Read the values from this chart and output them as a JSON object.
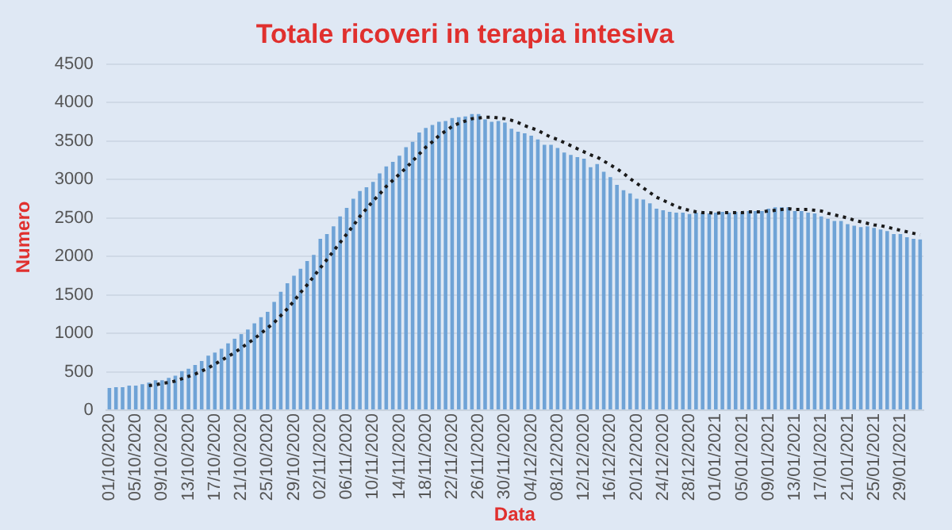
{
  "chart_data": {
    "type": "bar",
    "title": "Totale ricoveri in terapia intesiva",
    "xlabel": "Data",
    "ylabel": "Numero",
    "categories": [
      "01/10/2020",
      null,
      null,
      null,
      "05/10/2020",
      null,
      null,
      null,
      "09/10/2020",
      null,
      null,
      null,
      "13/10/2020",
      null,
      null,
      null,
      "17/10/2020",
      null,
      null,
      null,
      "21/10/2020",
      null,
      null,
      null,
      "25/10/2020",
      null,
      null,
      null,
      "29/10/2020",
      null,
      null,
      null,
      "02/11/2020",
      null,
      null,
      null,
      "06/11/2020",
      null,
      null,
      null,
      "10/11/2020",
      null,
      null,
      null,
      "14/11/2020",
      null,
      null,
      null,
      "18/11/2020",
      null,
      null,
      null,
      "22/11/2020",
      null,
      null,
      null,
      "26/11/2020",
      null,
      null,
      null,
      "30/11/2020",
      null,
      null,
      null,
      "04/12/2020",
      null,
      null,
      null,
      "08/12/2020",
      null,
      null,
      null,
      "12/12/2020",
      null,
      null,
      null,
      "16/12/2020",
      null,
      null,
      null,
      "20/12/2020",
      null,
      null,
      null,
      "24/12/2020",
      null,
      null,
      null,
      "28/12/2020",
      null,
      null,
      null,
      "01/01/2021",
      null,
      null,
      null,
      "05/01/2021",
      null,
      null,
      null,
      "09/01/2021",
      null,
      null,
      null,
      "13/01/2021",
      null,
      null,
      null,
      "17/01/2021",
      null,
      null,
      null,
      "21/01/2021",
      null,
      null,
      null,
      "25/01/2021",
      null,
      null,
      null,
      "29/01/2021",
      null,
      null,
      null
    ],
    "series": [
      {
        "color": "#6fa3d6",
        "values": [
          290,
          300,
          300,
          320,
          320,
          340,
          360,
          390,
          390,
          420,
          450,
          510,
          540,
          590,
          640,
          710,
          750,
          800,
          870,
          930,
          990,
          1050,
          1130,
          1210,
          1280,
          1410,
          1540,
          1650,
          1750,
          1840,
          1940,
          2020,
          2230,
          2290,
          2390,
          2520,
          2630,
          2750,
          2850,
          2900,
          2970,
          3080,
          3170,
          3230,
          3310,
          3420,
          3490,
          3610,
          3670,
          3710,
          3750,
          3760,
          3800,
          3810,
          3820,
          3850,
          3850,
          3780,
          3750,
          3760,
          3740,
          3660,
          3620,
          3600,
          3570,
          3520,
          3450,
          3450,
          3410,
          3350,
          3320,
          3290,
          3270,
          3160,
          3200,
          3100,
          3030,
          2930,
          2860,
          2820,
          2750,
          2740,
          2690,
          2620,
          2600,
          2580,
          2570,
          2570,
          2550,
          2570,
          2570,
          2560,
          2570,
          2580,
          2570,
          2580,
          2580,
          2590,
          2590,
          2590,
          2620,
          2640,
          2640,
          2640,
          2590,
          2590,
          2570,
          2560,
          2520,
          2490,
          2460,
          2460,
          2420,
          2400,
          2380,
          2390,
          2370,
          2350,
          2330,
          2290,
          2290,
          2250,
          2230,
          2220
        ]
      },
      {
        "type": "line",
        "color": "#1a1a1a",
        "line_style": "dotted",
        "marker": "none",
        "values": [
          null,
          null,
          null,
          null,
          null,
          null,
          320,
          330,
          350,
          360,
          380,
          410,
          440,
          470,
          510,
          550,
          600,
          650,
          700,
          750,
          810,
          870,
          930,
          1000,
          1070,
          1140,
          1230,
          1320,
          1420,
          1530,
          1630,
          1740,
          1850,
          1960,
          2070,
          2180,
          2290,
          2400,
          2520,
          2620,
          2720,
          2810,
          2910,
          2990,
          3070,
          3150,
          3240,
          3330,
          3420,
          3490,
          3570,
          3630,
          3690,
          3730,
          3760,
          3790,
          3800,
          3810,
          3810,
          3800,
          3790,
          3770,
          3740,
          3700,
          3670,
          3640,
          3590,
          3550,
          3520,
          3480,
          3440,
          3400,
          3360,
          3320,
          3290,
          3240,
          3190,
          3140,
          3080,
          3010,
          2950,
          2890,
          2830,
          2770,
          2730,
          2690,
          2650,
          2620,
          2600,
          2580,
          2570,
          2570,
          2560,
          2570,
          2570,
          2570,
          2570,
          2580,
          2580,
          2580,
          2590,
          2600,
          2610,
          2620,
          2610,
          2610,
          2610,
          2600,
          2590,
          2560,
          2540,
          2520,
          2500,
          2470,
          2450,
          2430,
          2410,
          2400,
          2380,
          2360,
          2340,
          2320,
          2300,
          2280
        ]
      }
    ],
    "ylim": [
      0,
      4500
    ],
    "yticks": [
      0,
      500,
      1000,
      1500,
      2000,
      2500,
      3000,
      3500,
      4000,
      4500
    ],
    "grid": "y",
    "legend": false
  }
}
